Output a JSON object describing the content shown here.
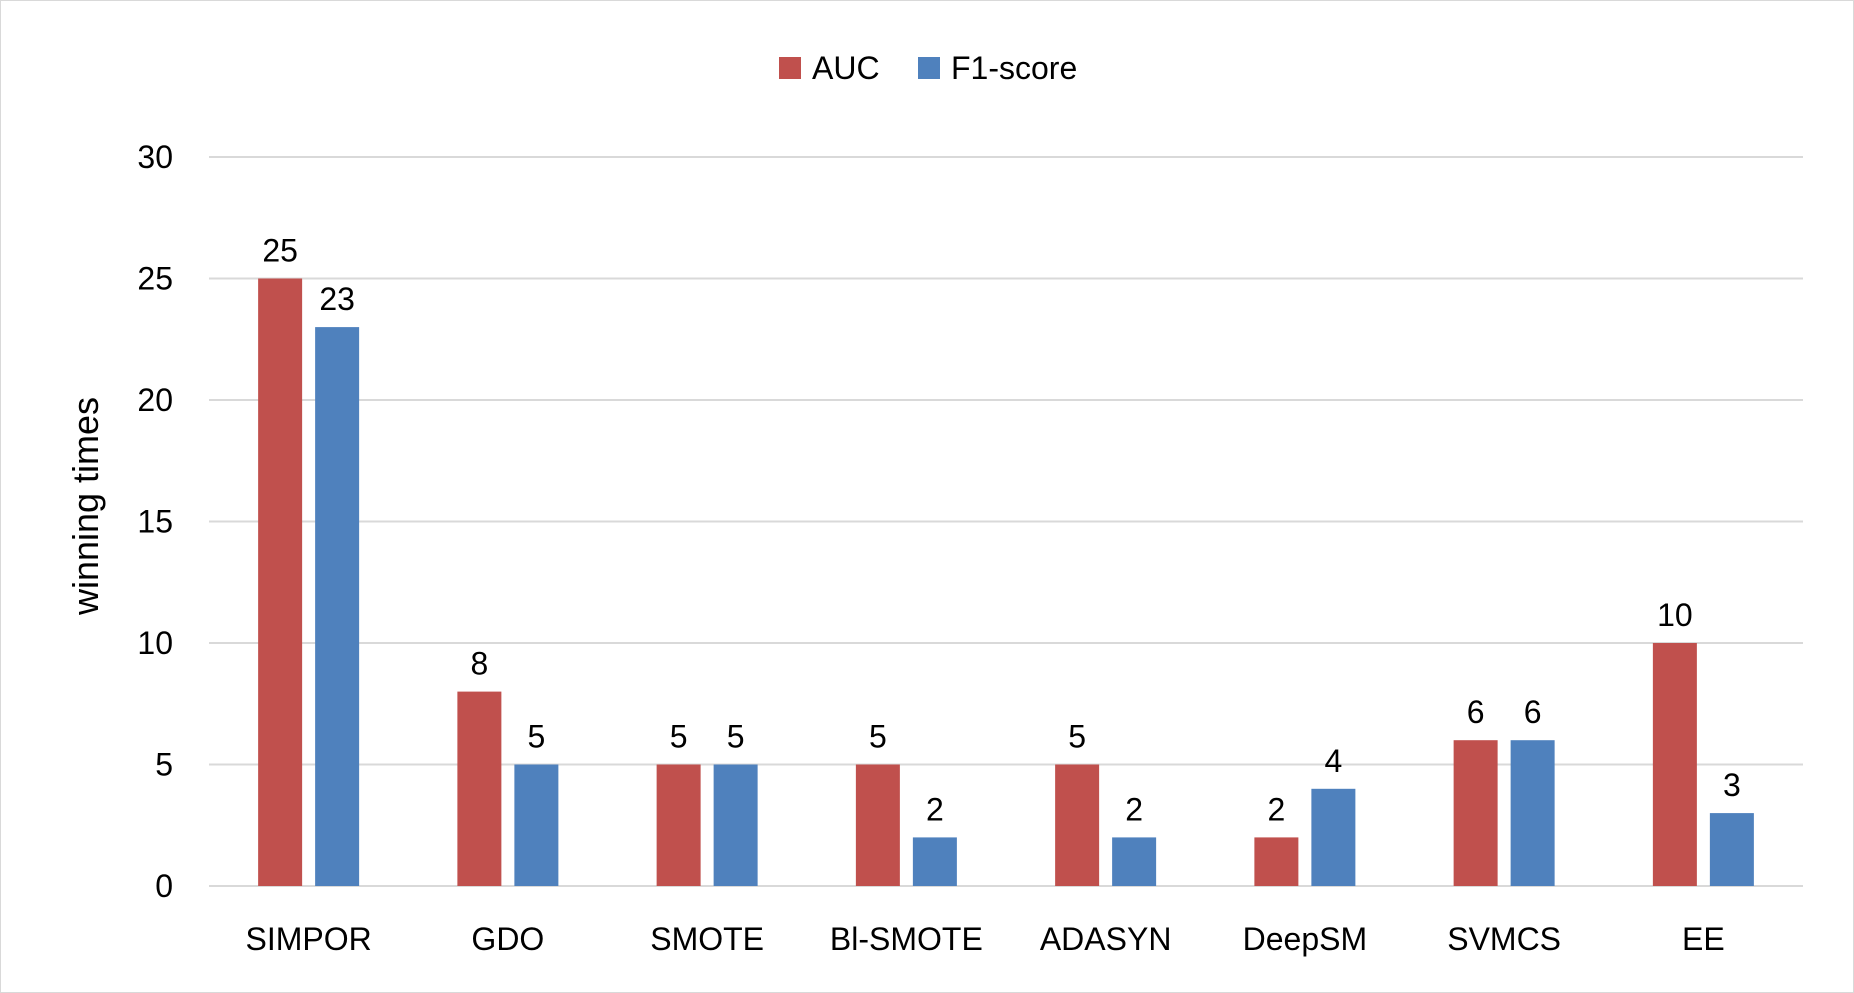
{
  "chart_data": {
    "type": "bar",
    "categories": [
      "SIMPOR",
      "GDO",
      "SMOTE",
      "Bl-SMOTE",
      "ADASYN",
      "DeepSM",
      "SVMCS",
      "EE"
    ],
    "series": [
      {
        "name": "AUC",
        "color": "#c0504d",
        "values": [
          25,
          8,
          5,
          5,
          5,
          2,
          6,
          10
        ]
      },
      {
        "name": "F1-score",
        "color": "#4f81bd",
        "values": [
          23,
          5,
          5,
          2,
          2,
          4,
          6,
          3
        ]
      }
    ],
    "title": "",
    "xlabel": "",
    "ylabel": "winning times",
    "ylim": [
      0,
      30
    ],
    "yticks": [
      0,
      5,
      10,
      15,
      20,
      25,
      30
    ],
    "grid": true,
    "legend_position": "top-center",
    "data_labels": true
  }
}
